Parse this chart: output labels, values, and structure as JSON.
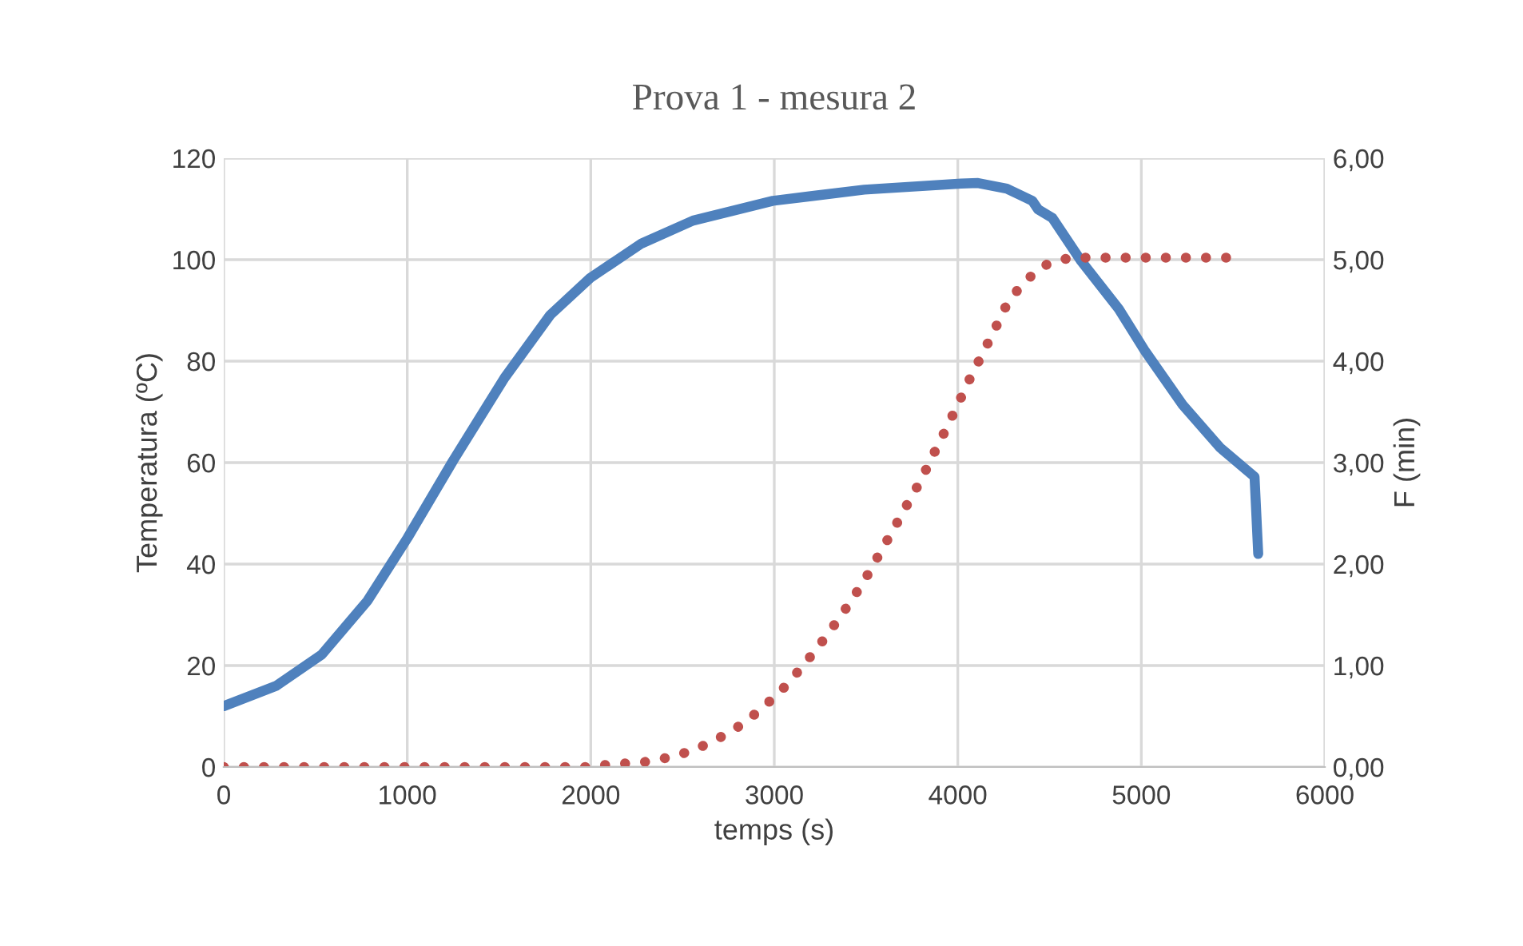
{
  "chart_data": {
    "type": "line",
    "title": "Prova 1 - mesura 2",
    "xlabel": "temps (s)",
    "ylabel": "Temperatura (ºC)",
    "y2label": "F (min)",
    "xlim": [
      0,
      6000
    ],
    "xticks": [
      0,
      1000,
      2000,
      3000,
      4000,
      5000,
      6000
    ],
    "ylim": [
      0,
      120
    ],
    "yticks": [
      0,
      20,
      40,
      60,
      80,
      100,
      120
    ],
    "y2lim": [
      0,
      6
    ],
    "y2ticks": [
      {
        "value": 0,
        "label": "0,00"
      },
      {
        "value": 1,
        "label": "1,00"
      },
      {
        "value": 2,
        "label": "2,00"
      },
      {
        "value": 3,
        "label": "3,00"
      },
      {
        "value": 4,
        "label": "4,00"
      },
      {
        "value": 5,
        "label": "5,00"
      },
      {
        "value": 6,
        "label": "6,00"
      }
    ],
    "grid": true,
    "legend": false,
    "series": [
      {
        "color": "#4f81bd",
        "line_style": "solid",
        "x": [
          0,
          286,
          535,
          784,
          1002,
          1250,
          1530,
          1779,
          1997,
          2277,
          2557,
          2992,
          3490,
          4018,
          4110,
          4267,
          4406,
          4438,
          4516,
          4673,
          4877,
          5022,
          5225,
          5428,
          5617,
          5637
        ],
        "values": [
          12.0,
          16.0,
          22.2,
          32.8,
          45.2,
          60.4,
          76.7,
          89.1,
          96.4,
          103.2,
          107.7,
          111.6,
          113.8,
          115.0,
          115.1,
          114.0,
          111.6,
          109.9,
          108.2,
          99.7,
          90.3,
          81.9,
          71.4,
          63.0,
          57.2,
          42.0
        ]
      },
      {
        "color": "#c0504d",
        "line_style": "dotted",
        "axis": "y2",
        "x": [
          0,
          2000,
          2119,
          2264,
          2412,
          2554,
          2694,
          2825,
          2941,
          3051,
          3153,
          3246,
          3335,
          3420,
          3501,
          3576,
          3652,
          3725,
          3797,
          3864,
          3930,
          3997,
          4061,
          4128,
          4195,
          4262,
          4349,
          4465,
          4609,
          5513
        ],
        "values": [
          0,
          0,
          0.03,
          0.04,
          0.09,
          0.16,
          0.28,
          0.42,
          0.59,
          0.78,
          0.99,
          1.2,
          1.42,
          1.64,
          1.87,
          2.11,
          2.35,
          2.59,
          2.82,
          3.07,
          3.31,
          3.56,
          3.81,
          4.05,
          4.29,
          4.54,
          4.76,
          4.94,
          5.02,
          5.02
        ]
      }
    ]
  }
}
